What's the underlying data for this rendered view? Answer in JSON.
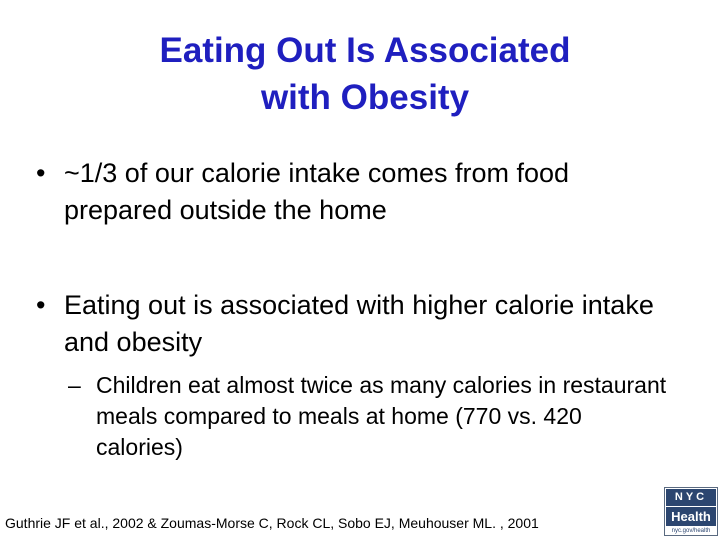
{
  "slide": {
    "title_line1": "Eating Out Is Associated",
    "title_line2": "with Obesity",
    "bullets": [
      {
        "marker": "•",
        "text": "~1/3 of our calorie intake comes from food prepared outside the home"
      },
      {
        "marker": "•",
        "text": "Eating out is associated with higher calorie intake and obesity",
        "sub_bullets": [
          {
            "marker": "–",
            "text": "Children eat almost twice as many calories in restaurant meals compared to meals at home (770 vs. 420 calories)"
          }
        ]
      }
    ],
    "citation": "Guthrie JF et al., 2002 & Zoumas-Morse C, Rock CL, Sobo EJ, Meuhouser ML. , 2001"
  },
  "logo": {
    "line1": "NYC",
    "line2": "Health",
    "url": "nyc.gov/health"
  },
  "colors": {
    "title": "#1f1fbf",
    "body_text": "#000000",
    "logo_blue": "#2c4670"
  }
}
